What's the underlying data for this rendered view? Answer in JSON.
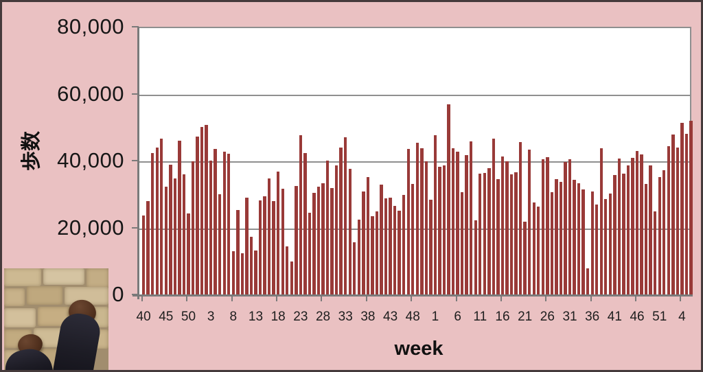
{
  "chart": {
    "y_axis": {
      "title": "歩数",
      "tick_labels": [
        "80,000",
        "60,000",
        "40,000",
        "20,000",
        "0"
      ],
      "min": 0,
      "max": 80000,
      "tick_step": 20000
    },
    "x_axis": {
      "title": "week",
      "tick_labels": [
        "40",
        "45",
        "50",
        "3",
        "8",
        "13",
        "18",
        "23",
        "28",
        "33",
        "38",
        "43",
        "48",
        "1",
        "6",
        "11",
        "16",
        "21",
        "26",
        "31",
        "36",
        "41",
        "46",
        "51",
        "4"
      ],
      "label_every_n_bars": 5
    }
  },
  "chart_data": {
    "type": "bar",
    "title": "",
    "xlabel": "week",
    "ylabel": "歩数",
    "ylim": [
      0,
      80000
    ],
    "grid": "horizontal",
    "bar_color": "#993a38",
    "plot_bg": "#ffffff",
    "page_bg": "#eac1c2",
    "weeks": [
      40,
      41,
      42,
      43,
      44,
      45,
      46,
      47,
      48,
      49,
      50,
      51,
      52,
      1,
      2,
      3,
      4,
      5,
      6,
      7,
      8,
      9,
      10,
      11,
      12,
      13,
      14,
      15,
      16,
      17,
      18,
      19,
      20,
      21,
      22,
      23,
      24,
      25,
      26,
      27,
      28,
      29,
      30,
      31,
      32,
      33,
      34,
      35,
      36,
      37,
      38,
      39,
      40,
      41,
      42,
      43,
      44,
      45,
      46,
      47,
      48,
      49,
      50,
      51,
      52,
      1,
      2,
      3,
      4,
      5,
      6,
      7,
      8,
      9,
      10,
      11,
      12,
      13,
      14,
      15,
      16,
      17,
      18,
      19,
      20,
      21,
      22,
      23,
      24,
      25,
      26,
      27,
      28,
      29,
      30,
      31,
      32,
      33,
      34,
      35,
      36,
      37,
      38,
      39,
      40,
      41,
      42,
      43,
      44,
      45,
      46,
      47,
      48,
      49,
      50,
      51,
      52,
      1,
      2,
      3,
      4,
      5,
      6
    ],
    "values": [
      23500,
      27900,
      42200,
      43900,
      46600,
      32300,
      38800,
      34700,
      46000,
      35800,
      24200,
      39900,
      47200,
      50000,
      50600,
      40100,
      43500,
      29900,
      42600,
      42100,
      12900,
      25300,
      12400,
      29000,
      17300,
      13100,
      28200,
      29400,
      34600,
      28000,
      36700,
      31500,
      14400,
      9800,
      32400,
      47500,
      42300,
      24400,
      30400,
      32200,
      33200,
      40000,
      31900,
      38500,
      43800,
      46900,
      37600,
      15500,
      22400,
      30700,
      35100,
      23400,
      24900,
      32800,
      28800,
      28900,
      26400,
      25100,
      29700,
      43400,
      33000,
      45300,
      43600,
      39900,
      28300,
      47500,
      38200,
      38500,
      56900,
      43700,
      42600,
      30600,
      41600,
      45700,
      22200,
      36200,
      36300,
      37800,
      46500,
      34400,
      41200,
      39900,
      35800,
      36500,
      45500,
      21700,
      43300,
      27400,
      26300,
      40400,
      41000,
      30600,
      34400,
      33600,
      39600,
      40400,
      34200,
      33300,
      31400,
      7800,
      30800,
      26800,
      43700,
      28500,
      30100,
      35700,
      40600,
      36200,
      38500,
      40800,
      42800,
      41900,
      33100,
      38500,
      24900,
      35100,
      37200,
      44400,
      47800,
      44000,
      51200,
      48000,
      51900
    ]
  },
  "photo": {
    "description": "two dark shoes on beige stone paving"
  }
}
